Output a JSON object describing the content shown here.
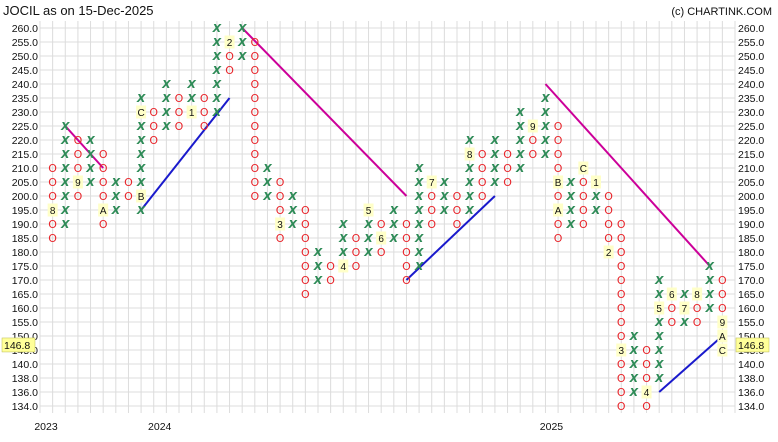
{
  "header": {
    "title": "JOCIL as on 15-Dec-2025",
    "copyright": "(c) CHARTINK.COM"
  },
  "chart_data": {
    "type": "point-and-figure",
    "title": "JOCIL as on 15-Dec-2025",
    "y_ticks": [
      "260.0",
      "255.0",
      "250.0",
      "245.0",
      "240.0",
      "235.0",
      "230.0",
      "225.0",
      "220.0",
      "215.0",
      "210.0",
      "205.0",
      "200.0",
      "195.0",
      "190.0",
      "185.0",
      "180.0",
      "175.0",
      "170.0",
      "165.0",
      "160.0",
      "155.0",
      "150.0",
      "145.0",
      "140.0",
      "138.0",
      "136.0",
      "134.0"
    ],
    "last_price": "146.8",
    "x_year_labels": [
      {
        "label": "2023",
        "col": 0
      },
      {
        "label": "2024",
        "col": 9
      },
      {
        "label": "2025",
        "col": 40
      }
    ],
    "colors": {
      "x": "#2e8b57",
      "o": "#e8262c",
      "resistance": "#cc0099",
      "support": "#1a1acc",
      "label_bg": "#ffffc8"
    },
    "grid": true,
    "columns": [
      {
        "t": "O",
        "hi": "210.0",
        "lo": "185.0",
        "labels": {
          "195.0": "8"
        }
      },
      {
        "t": "X",
        "hi": "225.0",
        "lo": "190.0",
        "labels": {}
      },
      {
        "t": "O",
        "hi": "220.0",
        "lo": "200.0",
        "labels": {
          "205.0": "9"
        }
      },
      {
        "t": "X",
        "hi": "220.0",
        "lo": "205.0",
        "labels": {}
      },
      {
        "t": "O",
        "hi": "215.0",
        "lo": "190.0",
        "labels": {
          "195.0": "A"
        }
      },
      {
        "t": "X",
        "hi": "205.0",
        "lo": "195.0",
        "labels": {}
      },
      {
        "t": "O",
        "hi": "205.0",
        "lo": "200.0",
        "labels": {}
      },
      {
        "t": "X",
        "hi": "235.0",
        "lo": "195.0",
        "labels": {
          "230.0": "C",
          "200.0": "B"
        }
      },
      {
        "t": "O",
        "hi": "230.0",
        "lo": "220.0",
        "labels": {}
      },
      {
        "t": "X",
        "hi": "240.0",
        "lo": "225.0",
        "labels": {}
      },
      {
        "t": "O",
        "hi": "235.0",
        "lo": "225.0",
        "labels": {}
      },
      {
        "t": "X",
        "hi": "240.0",
        "lo": "230.0",
        "labels": {
          "230.0": "1"
        }
      },
      {
        "t": "O",
        "hi": "235.0",
        "lo": "225.0",
        "labels": {}
      },
      {
        "t": "X",
        "hi": "260.0",
        "lo": "230.0",
        "labels": {}
      },
      {
        "t": "O",
        "hi": "255.0",
        "lo": "245.0",
        "labels": {
          "255.0": "2"
        }
      },
      {
        "t": "X",
        "hi": "260.0",
        "lo": "250.0",
        "labels": {}
      },
      {
        "t": "O",
        "hi": "255.0",
        "lo": "200.0",
        "labels": {}
      },
      {
        "t": "X",
        "hi": "210.0",
        "lo": "200.0",
        "labels": {}
      },
      {
        "t": "O",
        "hi": "205.0",
        "lo": "185.0",
        "labels": {
          "190.0": "3"
        }
      },
      {
        "t": "X",
        "hi": "200.0",
        "lo": "190.0",
        "labels": {}
      },
      {
        "t": "O",
        "hi": "195.0",
        "lo": "165.0",
        "labels": {}
      },
      {
        "t": "X",
        "hi": "180.0",
        "lo": "170.0",
        "labels": {}
      },
      {
        "t": "O",
        "hi": "175.0",
        "lo": "170.0",
        "labels": {}
      },
      {
        "t": "X",
        "hi": "190.0",
        "lo": "175.0",
        "labels": {
          "175.0": "4"
        }
      },
      {
        "t": "O",
        "hi": "185.0",
        "lo": "175.0",
        "labels": {}
      },
      {
        "t": "X",
        "hi": "195.0",
        "lo": "180.0",
        "labels": {
          "195.0": "5"
        }
      },
      {
        "t": "O",
        "hi": "190.0",
        "lo": "180.0",
        "labels": {
          "185.0": "6"
        }
      },
      {
        "t": "X",
        "hi": "195.0",
        "lo": "185.0",
        "labels": {}
      },
      {
        "t": "O",
        "hi": "190.0",
        "lo": "170.0",
        "labels": {}
      },
      {
        "t": "X",
        "hi": "210.0",
        "lo": "175.0",
        "labels": {}
      },
      {
        "t": "O",
        "hi": "205.0",
        "lo": "190.0",
        "labels": {
          "205.0": "7"
        }
      },
      {
        "t": "X",
        "hi": "205.0",
        "lo": "195.0",
        "labels": {}
      },
      {
        "t": "O",
        "hi": "200.0",
        "lo": "190.0",
        "labels": {}
      },
      {
        "t": "X",
        "hi": "220.0",
        "lo": "195.0",
        "labels": {
          "215.0": "8"
        }
      },
      {
        "t": "O",
        "hi": "215.0",
        "lo": "200.0",
        "labels": {}
      },
      {
        "t": "X",
        "hi": "220.0",
        "lo": "205.0",
        "labels": {}
      },
      {
        "t": "O",
        "hi": "215.0",
        "lo": "205.0",
        "labels": {}
      },
      {
        "t": "X",
        "hi": "230.0",
        "lo": "210.0",
        "labels": {}
      },
      {
        "t": "O",
        "hi": "225.0",
        "lo": "215.0",
        "labels": {
          "225.0": "9"
        }
      },
      {
        "t": "X",
        "hi": "235.0",
        "lo": "215.0",
        "labels": {}
      },
      {
        "t": "O",
        "hi": "225.0",
        "lo": "185.0",
        "labels": {
          "195.0": "A",
          "205.0": "B"
        }
      },
      {
        "t": "X",
        "hi": "205.0",
        "lo": "190.0",
        "labels": {}
      },
      {
        "t": "O",
        "hi": "210.0",
        "lo": "190.0",
        "labels": {
          "210.0": "C"
        }
      },
      {
        "t": "X",
        "hi": "205.0",
        "lo": "195.0",
        "labels": {
          "205.0": "1"
        }
      },
      {
        "t": "O",
        "hi": "200.0",
        "lo": "180.0",
        "labels": {
          "180.0": "2"
        }
      },
      {
        "t": "O",
        "hi": "190.0",
        "lo": "134.0",
        "labels": {
          "145.0": "3"
        }
      },
      {
        "t": "X",
        "hi": "150.0",
        "lo": "136.0",
        "labels": {}
      },
      {
        "t": "O",
        "hi": "145.0",
        "lo": "134.0",
        "labels": {
          "136.0": "4"
        }
      },
      {
        "t": "X",
        "hi": "170.0",
        "lo": "138.0",
        "labels": {
          "160.0": "5"
        }
      },
      {
        "t": "O",
        "hi": "165.0",
        "lo": "155.0",
        "labels": {
          "165.0": "6"
        }
      },
      {
        "t": "X",
        "hi": "165.0",
        "lo": "155.0",
        "labels": {
          "160.0": "7"
        }
      },
      {
        "t": "O",
        "hi": "165.0",
        "lo": "155.0",
        "labels": {
          "165.0": "8"
        }
      },
      {
        "t": "X",
        "hi": "175.0",
        "lo": "160.0",
        "labels": {}
      },
      {
        "t": "O",
        "hi": "170.0",
        "lo": "145.0",
        "labels": {
          "155.0": "9",
          "150.0": "A",
          "145.0": "C"
        }
      }
    ],
    "trendlines": [
      {
        "kind": "resistance",
        "from": {
          "col": 1,
          "price": "225.0"
        },
        "to": {
          "col": 4,
          "price": "210.0"
        }
      },
      {
        "kind": "support",
        "from": {
          "col": 7,
          "price": "195.0"
        },
        "to": {
          "col": 14,
          "price": "235.0"
        }
      },
      {
        "kind": "resistance",
        "from": {
          "col": 15,
          "price": "260.0"
        },
        "to": {
          "col": 28,
          "price": "200.0"
        }
      },
      {
        "kind": "support",
        "from": {
          "col": 28,
          "price": "170.0"
        },
        "to": {
          "col": 35,
          "price": "200.0"
        }
      },
      {
        "kind": "resistance",
        "from": {
          "col": 39,
          "price": "240.0"
        },
        "to": {
          "col": 52,
          "price": "175.0"
        }
      },
      {
        "kind": "support",
        "from": {
          "col": 48,
          "price": "136.0"
        },
        "to": {
          "col": 53,
          "price": "150.0"
        }
      }
    ]
  }
}
